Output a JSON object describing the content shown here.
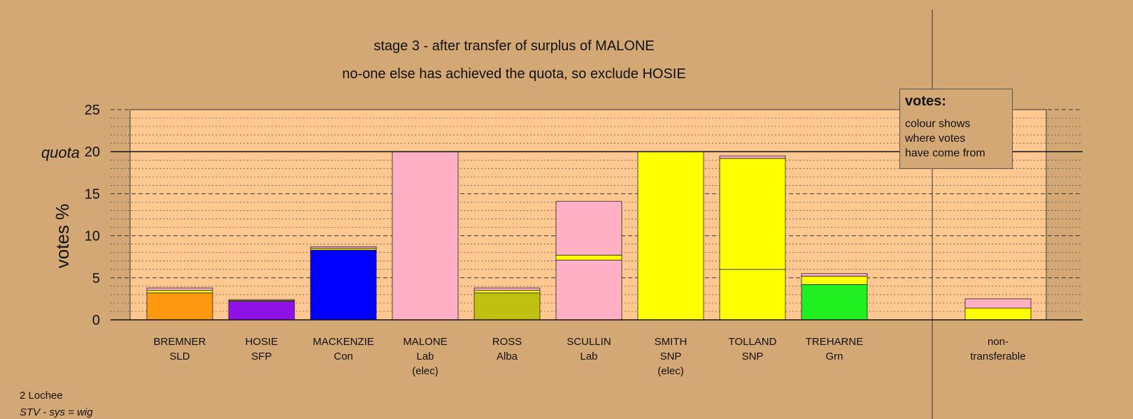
{
  "chart_data": {
    "type": "bar",
    "stacked": true,
    "title": "stage 3 - after transfer of surplus of MALONE",
    "subtitle": "no-one else has achieved the quota, so exclude HOSIE",
    "ylabel": "votes %",
    "ylim": [
      0,
      25
    ],
    "yticks": [
      0,
      5,
      10,
      15,
      20,
      25
    ],
    "quota": 20,
    "quota_label": "quota",
    "grid": true,
    "categories": [
      {
        "name": "BREMNER",
        "party": "SLD",
        "note": ""
      },
      {
        "name": "HOSIE",
        "party": "SFP",
        "note": ""
      },
      {
        "name": "MACKENZIE",
        "party": "Con",
        "note": ""
      },
      {
        "name": "MALONE",
        "party": "Lab",
        "note": "(elec)"
      },
      {
        "name": "ROSS",
        "party": "Alba",
        "note": ""
      },
      {
        "name": "SCULLIN",
        "party": "Lab",
        "note": ""
      },
      {
        "name": "SMITH",
        "party": "SNP",
        "note": "(elec)"
      },
      {
        "name": "TOLLAND",
        "party": "SNP",
        "note": ""
      },
      {
        "name": "TREHARNE",
        "party": "Grn",
        "note": ""
      },
      {
        "name": "non-",
        "party": "transferable",
        "note": ""
      }
    ],
    "bars": [
      {
        "segments": [
          {
            "value": 3.2,
            "color": "#ff9a10"
          },
          {
            "value": 0.3,
            "color": "#ffff00"
          },
          {
            "value": 0.3,
            "color": "#ffb0c4"
          }
        ]
      },
      {
        "segments": [
          {
            "value": 2.2,
            "color": "#9010e8"
          },
          {
            "value": 0.1,
            "color": "#ffff00"
          },
          {
            "value": 0.1,
            "color": "#ffb0c4"
          }
        ]
      },
      {
        "segments": [
          {
            "value": 8.3,
            "color": "#0000ff"
          },
          {
            "value": 0.2,
            "color": "#ffff00"
          },
          {
            "value": 0.2,
            "color": "#ffb0c4"
          }
        ]
      },
      {
        "segments": [
          {
            "value": 20.0,
            "color": "#ffb0c4"
          }
        ]
      },
      {
        "segments": [
          {
            "value": 3.2,
            "color": "#c0c010"
          },
          {
            "value": 0.3,
            "color": "#ffff00"
          },
          {
            "value": 0.3,
            "color": "#ffb0c4"
          }
        ]
      },
      {
        "segments": [
          {
            "value": 7.1,
            "color": "#ffb0c4"
          },
          {
            "value": 0.6,
            "color": "#ffff00"
          },
          {
            "value": 6.4,
            "color": "#ffb0c4"
          }
        ]
      },
      {
        "segments": [
          {
            "value": 20.0,
            "color": "#ffff00"
          }
        ]
      },
      {
        "segments": [
          {
            "value": 6.0,
            "color": "#ffff00"
          },
          {
            "value": 13.2,
            "color": "#ffff00"
          },
          {
            "value": 0.3,
            "color": "#ffb0c4"
          }
        ]
      },
      {
        "segments": [
          {
            "value": 4.2,
            "color": "#20f020"
          },
          {
            "value": 1.0,
            "color": "#ffff00"
          },
          {
            "value": 0.3,
            "color": "#ffb0c4"
          }
        ]
      },
      {
        "segments": [
          {
            "value": 1.4,
            "color": "#ffff00"
          },
          {
            "value": 1.1,
            "color": "#ffb0c4"
          }
        ]
      }
    ]
  },
  "legend": {
    "title": "votes:",
    "lines": [
      "colour shows",
      "where votes",
      "have come from"
    ]
  },
  "footer": {
    "area": "2 Lochee",
    "system": "STV - sys = wig"
  },
  "colors": {
    "background": "#d4a874",
    "plot_background": "#ffc890"
  }
}
